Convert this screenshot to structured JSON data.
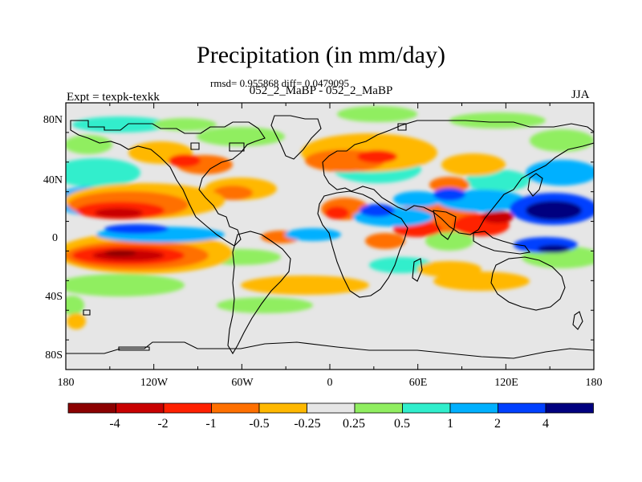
{
  "title": "Precipitation (in mm/day)",
  "stats": "rmsd= 0.955868 diff= 0.0479095",
  "subtitle": "052_2_MaBP - 052_2_MaBP",
  "experiment": "Expt = texpk-texkk",
  "season": "JJA",
  "axes": {
    "x_ticks": [
      "180",
      "120W",
      "60W",
      "0",
      "60E",
      "120E",
      "180"
    ],
    "y_ticks": [
      "80N",
      "40N",
      "0",
      "40S",
      "80S"
    ]
  },
  "colorbar": {
    "labels": [
      "-4",
      "-2",
      "-1",
      "-0.5",
      "-0.25",
      "0.25",
      "0.5",
      "1",
      "2",
      "4"
    ],
    "colors": [
      "#8b0000",
      "#c80000",
      "#ff2000",
      "#ff7000",
      "#ffb800",
      "#e6e6e6",
      "#90ee60",
      "#30eecc",
      "#00b0ff",
      "#0040ff",
      "#00007f"
    ]
  },
  "chart_data": {
    "type": "heatmap",
    "title": "Precipitation (in mm/day)",
    "units": "mm/day",
    "x_range": [
      -180,
      180
    ],
    "y_range": [
      -90,
      90
    ],
    "levels": [
      -4,
      -2,
      -1,
      -0.5,
      -0.25,
      0.25,
      0.5,
      1,
      2,
      4
    ]
  }
}
